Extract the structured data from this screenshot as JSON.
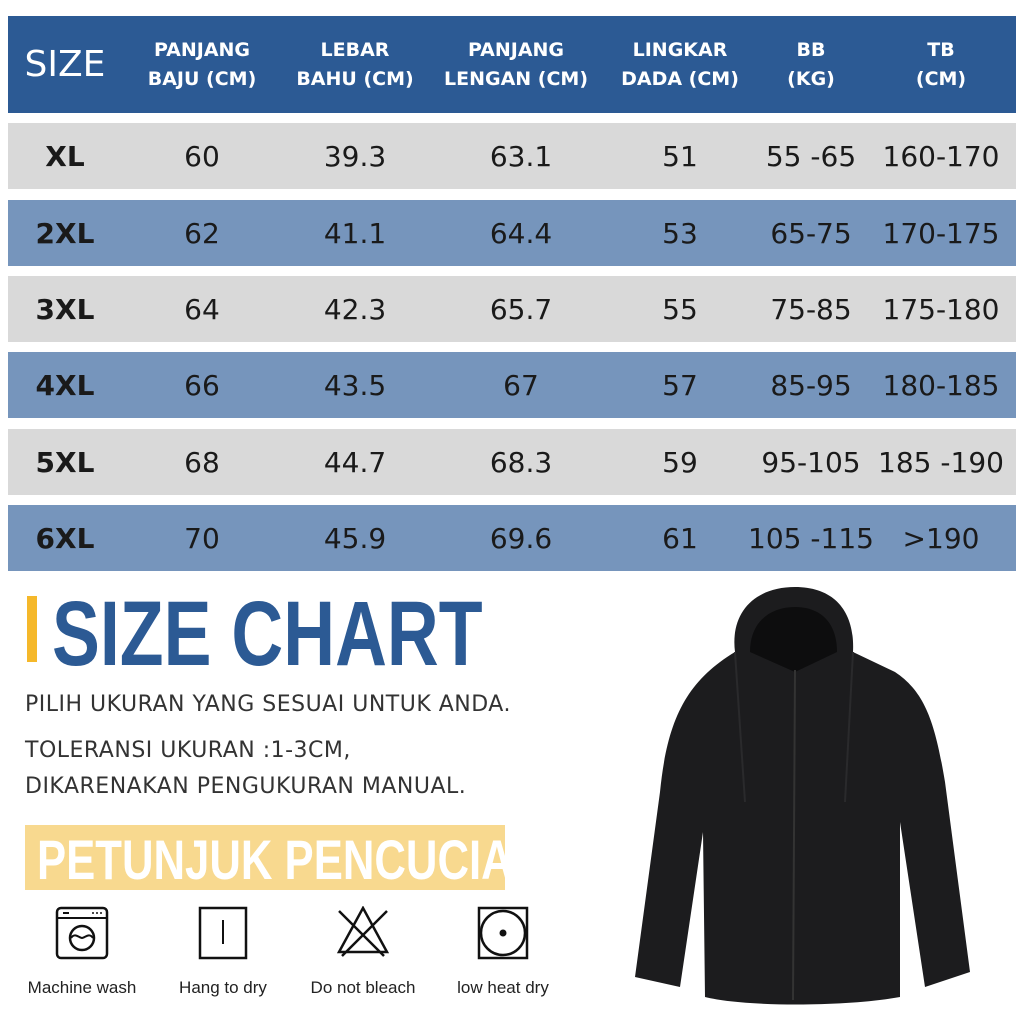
{
  "table": {
    "headers": [
      "SIZE",
      [
        "PANJANG",
        "BAJU (CM)"
      ],
      [
        "LEBAR",
        "BAHU (CM)"
      ],
      [
        "PANJANG",
        "LENGAN (CM)"
      ],
      [
        "LINGKAR",
        "DADA (CM)"
      ],
      [
        "BB",
        "(KG)"
      ],
      [
        "TB",
        "(CM)"
      ]
    ],
    "rows": [
      [
        "XL",
        "60",
        "39.3",
        "63.1",
        "51",
        "55 -65",
        "160-170"
      ],
      [
        "2XL",
        "62",
        "41.1",
        "64.4",
        "53",
        "65-75",
        "170-175"
      ],
      [
        "3XL",
        "64",
        "42.3",
        "65.7",
        "55",
        "75-85",
        "175-180"
      ],
      [
        "4XL",
        "66",
        "43.5",
        "67",
        "57",
        "85-95",
        "180-185"
      ],
      [
        "5XL",
        "68",
        "44.7",
        "68.3",
        "59",
        "95-105",
        "185 -190"
      ],
      [
        "6XL",
        "70",
        "45.9",
        "69.6",
        "61",
        "105 -115",
        ">190"
      ]
    ]
  },
  "title": "SIZE CHART",
  "notes": [
    "PILIH UKURAN YANG SESUAI UNTUK ANDA.",
    "TOLERANSI UKURAN :1-3CM,",
    "DIKARENAKAN PENGUKURAN MANUAL."
  ],
  "washing": {
    "title": "PETUNJUK PENCUCIAN",
    "items": [
      {
        "icon": "machine-wash-icon",
        "label": "Machine wash"
      },
      {
        "icon": "hang-to-dry-icon",
        "label": "Hang to dry"
      },
      {
        "icon": "do-not-bleach-icon",
        "label": "Do not bleach"
      },
      {
        "icon": "low-heat-dry-icon",
        "label": "low heat dry"
      }
    ]
  },
  "colors": {
    "header": "#2c5a94",
    "row_gray": "#d9d9d9",
    "row_blue": "#7695bc",
    "accent": "#f5b82a",
    "wash_banner": "#f8d98f"
  }
}
